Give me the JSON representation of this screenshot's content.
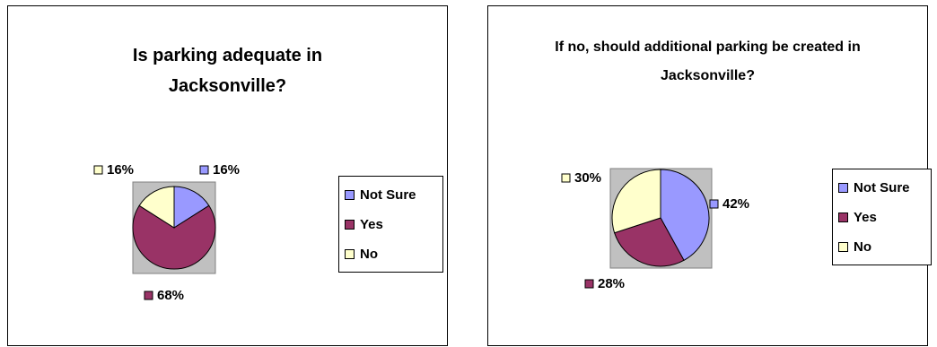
{
  "colors": {
    "not_sure": "#9999FF",
    "yes": "#993366",
    "no": "#FFFFCC",
    "plot_area": "#C0C0C0"
  },
  "chart_data": [
    {
      "type": "pie",
      "title": "Is parking adequate in Jacksonville?",
      "legend": "right",
      "categories": [
        "Not Sure",
        "Yes",
        "No"
      ],
      "values": [
        16,
        68,
        16
      ],
      "data_labels": [
        "16%",
        "68%",
        "16%"
      ]
    },
    {
      "type": "pie",
      "title": "If no, should additional parking be created in Jacksonville?",
      "legend": "right",
      "categories": [
        "Not Sure",
        "Yes",
        "No"
      ],
      "values": [
        42,
        28,
        30
      ],
      "data_labels": [
        "42%",
        "28%",
        "30%"
      ]
    }
  ]
}
